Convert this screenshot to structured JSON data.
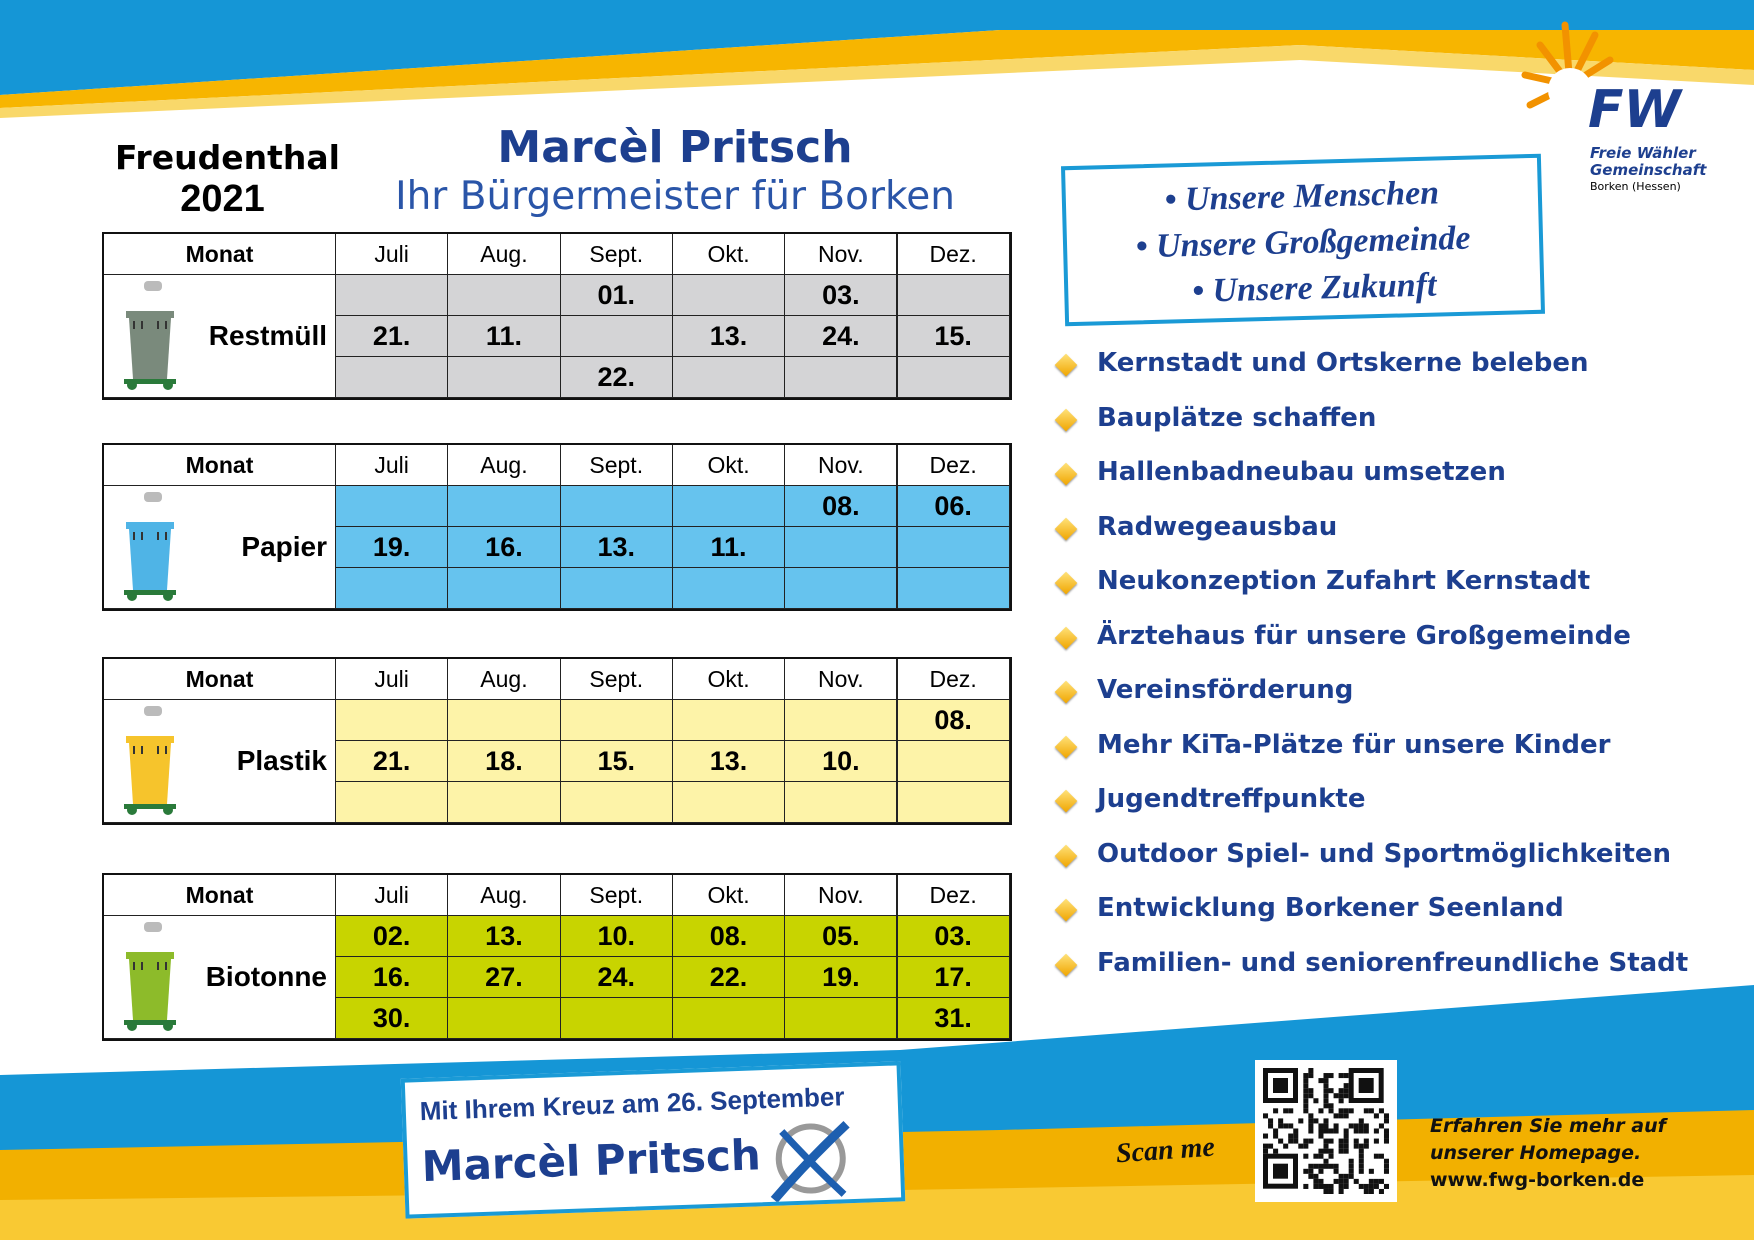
{
  "header": {
    "location": "Freudenthal",
    "year": "2021",
    "name": "Marcèl Pritsch",
    "subtitle": "Ihr Bürgermeister für Borken"
  },
  "logo": {
    "mark": "FW",
    "line1": "Freie Wähler",
    "line2": "Gemeinschaft",
    "line3": "Borken (Hessen)"
  },
  "slogans": [
    "Unsere Menschen",
    "Unsere Großgemeinde",
    "Unsere Zukunft"
  ],
  "table_header": [
    "Monat",
    "Juli",
    "Aug.",
    "Sept.",
    "Okt.",
    "Nov.",
    "Dez."
  ],
  "tables": [
    {
      "label": "Restmüll",
      "color": "#d4d4d6",
      "bin_color": "#7a8a7c",
      "rows": [
        [
          null,
          null,
          "01.",
          null,
          "03.",
          null
        ],
        [
          "21.",
          "11.",
          null,
          "13.",
          "24.",
          "15."
        ],
        [
          null,
          null,
          "22.",
          null,
          null,
          null
        ]
      ]
    },
    {
      "label": "Papier",
      "color": "#66c3ee",
      "bin_color": "#4fb4e6",
      "rows": [
        [
          null,
          null,
          null,
          null,
          "08.",
          "06."
        ],
        [
          "19.",
          "16.",
          "13.",
          "11.",
          null,
          null
        ],
        [
          null,
          null,
          null,
          null,
          null,
          null
        ]
      ]
    },
    {
      "label": "Plastik",
      "color": "#fdf3a8",
      "bin_color": "#f6c42c",
      "rows": [
        [
          null,
          null,
          null,
          null,
          null,
          "08."
        ],
        [
          "21.",
          "18.",
          "15.",
          "13.",
          "10.",
          null
        ],
        [
          null,
          null,
          null,
          null,
          null,
          null
        ]
      ]
    },
    {
      "label": "Biotonne",
      "color": "#c8d400",
      "bin_color": "#8dbb2a",
      "rows": [
        [
          "02.",
          "13.",
          "10.",
          "08.",
          "05.",
          "03."
        ],
        [
          "16.",
          "27.",
          "24.",
          "22.",
          "19.",
          "17."
        ],
        [
          "30.",
          null,
          null,
          null,
          null,
          "31."
        ]
      ]
    }
  ],
  "goals": [
    "Kernstadt und Ortskerne beleben",
    "Bauplätze schaffen",
    "Hallenbadneubau umsetzen",
    "Radwegeausbau",
    "Neukonzeption Zufahrt Kernstadt",
    "Ärztehaus für unsere Großgemeinde",
    "Vereinsförderung",
    "Mehr KiTa-Plätze für unsere Kinder",
    "Jugendtreffpunkte",
    "Outdoor Spiel- und Sportmöglichkeiten",
    "Entwicklung Borkener Seenland",
    "Familien- und seniorenfreundliche Stadt"
  ],
  "footer": {
    "vote_line": "Mit Ihrem Kreuz am 26. September",
    "vote_name": "Marcèl Pritsch",
    "scan": "Scan me",
    "info": [
      "Erfahren Sie mehr auf",
      "unserer Homepage.",
      "www.fwg-borken.de"
    ]
  }
}
